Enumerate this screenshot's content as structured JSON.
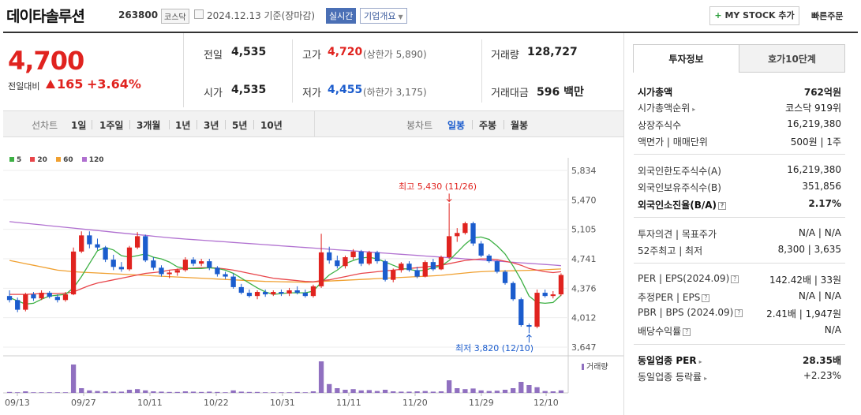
{
  "header": {
    "name": "데이타솔루션",
    "code": "263800",
    "market": "코스닥",
    "date": "2024.12.13 기준(장마감)",
    "live_label": "실시간",
    "corp_label": "기업개요",
    "mystock_label": "MY STOCK 추가",
    "quick_order_label": "빠른주문"
  },
  "price": {
    "current": "4,700",
    "change_label": "전일대비",
    "change": "165",
    "change_pct": "+3.64%"
  },
  "quote": {
    "prev_label": "전일",
    "prev": "4,535",
    "open_label": "시가",
    "open": "4,535",
    "high_label": "고가",
    "high": "4,720",
    "high_sub": "(상한가 5,890)",
    "low_label": "저가",
    "low": "4,455",
    "low_sub": "(하한가 3,175)",
    "vol_label": "거래량",
    "vol": "128,727",
    "amt_label": "거래대금",
    "amt": "596",
    "amt_unit": "백만"
  },
  "chart_tabs": {
    "line_label": "선차트",
    "periods": [
      "1일",
      "1주일",
      "3개월",
      "1년",
      "3년",
      "5년",
      "10년"
    ],
    "candle_label": "봉차트",
    "candles": [
      "일봉",
      "주봉",
      "월봉"
    ]
  },
  "side": {
    "tab_info": "투자정보",
    "tab_hoga": "호가10단계",
    "rows": [
      {
        "l": "시가총액",
        "r": "762억원"
      },
      {
        "l": "시가총액순위",
        "r": "코스닥 919위"
      },
      {
        "l": "상장주식수",
        "r": "16,219,380"
      },
      {
        "l": "액면가 | 매매단위",
        "r": "500원 | 1주"
      },
      {
        "l": "외국인한도주식수(A)",
        "r": "16,219,380"
      },
      {
        "l": "외국인보유주식수(B)",
        "r": "351,856"
      },
      {
        "l": "외국인소진율(B/A)",
        "r": "2.17%"
      },
      {
        "l": "투자의견 | 목표주가",
        "r": "N/A | N/A"
      },
      {
        "l": "52주최고 | 최저",
        "r": "8,300 | 3,635"
      },
      {
        "l": "PER | EPS(2024.09)",
        "r": "142.42배 | 33원"
      },
      {
        "l": "추정PER | EPS",
        "r": "N/A | N/A"
      },
      {
        "l": "PBR | BPS (2024.09)",
        "r": "2.41배 | 1,947원"
      },
      {
        "l": "배당수익률",
        "r": "N/A"
      },
      {
        "l": "동일업종 PER",
        "r": "28.35배"
      },
      {
        "l": "동일업종 등락률",
        "r": "+2.23%"
      }
    ]
  },
  "chart_data": {
    "type": "candlestick",
    "legend": [
      {
        "name": "5",
        "color": "#3cb043"
      },
      {
        "name": "20",
        "color": "#e8454a"
      },
      {
        "name": "60",
        "color": "#f0a030"
      },
      {
        "name": "120",
        "color": "#b070d0"
      }
    ],
    "y_ticks": [
      5834,
      5470,
      5105,
      4741,
      4376,
      4012,
      3647
    ],
    "ylim": [
      3647,
      5834
    ],
    "x_ticks": [
      "09/13",
      "09/27",
      "10/11",
      "10/22",
      "10/31",
      "11/11",
      "11/20",
      "11/29",
      "12/10"
    ],
    "max_annot": "최고 5,430 (11/26)",
    "min_annot": "최저 3,820 (12/10)",
    "volume_label": "거래량",
    "candles": [
      [
        4280,
        4350,
        4200,
        4230
      ],
      [
        4230,
        4260,
        4080,
        4110
      ],
      [
        4110,
        4320,
        4090,
        4300
      ],
      [
        4300,
        4330,
        4220,
        4250
      ],
      [
        4250,
        4350,
        4230,
        4320
      ],
      [
        4320,
        4340,
        4250,
        4270
      ],
      [
        4270,
        4300,
        4200,
        4230
      ],
      [
        4230,
        4330,
        4210,
        4300
      ],
      [
        4300,
        4880,
        4290,
        4830
      ],
      [
        4830,
        5080,
        4810,
        5030
      ],
      [
        5030,
        5080,
        4870,
        4920
      ],
      [
        4920,
        4990,
        4850,
        4880
      ],
      [
        4880,
        4900,
        4700,
        4730
      ],
      [
        4730,
        4790,
        4600,
        4640
      ],
      [
        4640,
        4700,
        4580,
        4610
      ],
      [
        4610,
        4900,
        4590,
        4880
      ],
      [
        4880,
        5070,
        4860,
        5020
      ],
      [
        5020,
        5040,
        4700,
        4720
      ],
      [
        4720,
        4760,
        4600,
        4630
      ],
      [
        4630,
        4660,
        4520,
        4550
      ],
      [
        4550,
        4600,
        4500,
        4570
      ],
      [
        4570,
        4620,
        4530,
        4600
      ],
      [
        4600,
        4760,
        4580,
        4730
      ],
      [
        4730,
        4760,
        4650,
        4680
      ],
      [
        4680,
        4740,
        4650,
        4710
      ],
      [
        4710,
        4740,
        4600,
        4630
      ],
      [
        4630,
        4650,
        4520,
        4550
      ],
      [
        4550,
        4580,
        4490,
        4520
      ],
      [
        4520,
        4560,
        4370,
        4390
      ],
      [
        4390,
        4430,
        4300,
        4320
      ],
      [
        4320,
        4360,
        4260,
        4280
      ],
      [
        4280,
        4350,
        4240,
        4330
      ],
      [
        4330,
        4360,
        4270,
        4300
      ],
      [
        4300,
        4350,
        4280,
        4330
      ],
      [
        4330,
        4360,
        4280,
        4310
      ],
      [
        4310,
        4380,
        4280,
        4350
      ],
      [
        4350,
        4400,
        4300,
        4320
      ],
      [
        4320,
        4360,
        4260,
        4280
      ],
      [
        4280,
        4420,
        4260,
        4400
      ],
      [
        4400,
        5050,
        4380,
        4820
      ],
      [
        4820,
        4890,
        4680,
        4720
      ],
      [
        4720,
        4780,
        4620,
        4650
      ],
      [
        4650,
        4780,
        4620,
        4760
      ],
      [
        4760,
        4860,
        4730,
        4830
      ],
      [
        4830,
        4850,
        4650,
        4680
      ],
      [
        4680,
        4840,
        4660,
        4820
      ],
      [
        4820,
        4840,
        4680,
        4710
      ],
      [
        4710,
        4730,
        4460,
        4480
      ],
      [
        4480,
        4620,
        4450,
        4600
      ],
      [
        4600,
        4700,
        4570,
        4680
      ],
      [
        4680,
        4710,
        4580,
        4600
      ],
      [
        4600,
        4640,
        4500,
        4520
      ],
      [
        4520,
        4720,
        4510,
        4700
      ],
      [
        4700,
        4740,
        4590,
        4610
      ],
      [
        4610,
        4780,
        4600,
        4760
      ],
      [
        4760,
        5430,
        4740,
        5020
      ],
      [
        5020,
        5120,
        4950,
        5060
      ],
      [
        5060,
        5200,
        5040,
        5180
      ],
      [
        5180,
        5200,
        4900,
        4930
      ],
      [
        4930,
        4960,
        4760,
        4780
      ],
      [
        4780,
        4800,
        4690,
        4710
      ],
      [
        4710,
        4720,
        4560,
        4580
      ],
      [
        4580,
        4600,
        4420,
        4440
      ],
      [
        4440,
        4460,
        4220,
        4240
      ],
      [
        4240,
        4260,
        3900,
        3920
      ],
      [
        3920,
        3940,
        3820,
        3900
      ],
      [
        3900,
        4360,
        3880,
        4320
      ],
      [
        4320,
        4360,
        4260,
        4280
      ],
      [
        4280,
        4340,
        4250,
        4300
      ],
      [
        4300,
        4560,
        4280,
        4540
      ]
    ],
    "volume": [
      0.03,
      0.02,
      0.05,
      0.02,
      0.02,
      0.02,
      0.02,
      0.02,
      0.9,
      0.15,
      0.08,
      0.06,
      0.05,
      0.04,
      0.04,
      0.1,
      0.12,
      0.08,
      0.05,
      0.04,
      0.03,
      0.03,
      0.05,
      0.04,
      0.03,
      0.04,
      0.03,
      0.02,
      0.08,
      0.04,
      0.03,
      0.03,
      0.02,
      0.02,
      0.02,
      0.02,
      0.03,
      0.02,
      0.05,
      1.0,
      0.28,
      0.15,
      0.1,
      0.12,
      0.08,
      0.09,
      0.06,
      0.1,
      0.05,
      0.04,
      0.04,
      0.05,
      0.06,
      0.04,
      0.05,
      0.4,
      0.15,
      0.12,
      0.14,
      0.08,
      0.06,
      0.07,
      0.1,
      0.15,
      0.35,
      0.25,
      0.18,
      0.06,
      0.05,
      0.08
    ],
    "ma5": [
      4260,
      4220,
      4180,
      4190,
      4240,
      4280,
      4290,
      4300,
      4380,
      4520,
      4680,
      4840,
      4880,
      4850,
      4780,
      4760,
      4780,
      4800,
      4760,
      4740,
      4700,
      4640,
      4620,
      4620,
      4620,
      4630,
      4620,
      4600,
      4560,
      4500,
      4440,
      4380,
      4330,
      4300,
      4310,
      4320,
      4320,
      4320,
      4340,
      4450,
      4540,
      4600,
      4680,
      4720,
      4750,
      4760,
      4740,
      4700,
      4660,
      4620,
      4610,
      4590,
      4600,
      4630,
      4650,
      4720,
      4820,
      4920,
      5000,
      5010,
      4980,
      4900,
      4800,
      4650,
      4480,
      4280,
      4200,
      4190,
      4200,
      4290
    ],
    "ma20": [
      4300,
      4300,
      4300,
      4305,
      4310,
      4310,
      4310,
      4315,
      4330,
      4370,
      4410,
      4440,
      4460,
      4480,
      4500,
      4520,
      4540,
      4560,
      4570,
      4580,
      4600,
      4610,
      4620,
      4625,
      4630,
      4630,
      4625,
      4615,
      4600,
      4580,
      4560,
      4540,
      4520,
      4500,
      4490,
      4480,
      4470,
      4460,
      4455,
      4470,
      4480,
      4500,
      4520,
      4540,
      4560,
      4570,
      4580,
      4590,
      4600,
      4610,
      4620,
      4630,
      4640,
      4650,
      4660,
      4680,
      4700,
      4720,
      4730,
      4740,
      4740,
      4730,
      4710,
      4690,
      4660,
      4620,
      4600,
      4580,
      4570,
      4580
    ],
    "ma60": [
      4720,
      4700,
      4680,
      4660,
      4640,
      4620,
      4600,
      4590,
      4580,
      4575,
      4570,
      4565,
      4560,
      4555,
      4550,
      4545,
      4540,
      4535,
      4530,
      4525,
      4520,
      4515,
      4510,
      4505,
      4500,
      4495,
      4490,
      4485,
      4480,
      4475,
      4470,
      4465,
      4460,
      4458,
      4456,
      4454,
      4452,
      4450,
      4452,
      4460,
      4465,
      4470,
      4475,
      4480,
      4485,
      4490,
      4495,
      4500,
      4505,
      4510,
      4515,
      4520,
      4525,
      4530,
      4535,
      4545,
      4555,
      4565,
      4575,
      4580,
      4585,
      4588,
      4590,
      4592,
      4595,
      4598,
      4600,
      4605,
      4610,
      4615
    ],
    "ma120": [
      5200,
      5190,
      5180,
      5170,
      5160,
      5150,
      5140,
      5130,
      5120,
      5110,
      5100,
      5090,
      5080,
      5070,
      5060,
      5050,
      5040,
      5030,
      5020,
      5010,
      5000,
      4992,
      4985,
      4978,
      4971,
      4964,
      4957,
      4950,
      4943,
      4936,
      4929,
      4922,
      4915,
      4908,
      4901,
      4894,
      4887,
      4880,
      4873,
      4866,
      4859,
      4852,
      4845,
      4838,
      4831,
      4824,
      4817,
      4810,
      4803,
      4796,
      4789,
      4782,
      4775,
      4768,
      4761,
      4754,
      4747,
      4740,
      4733,
      4726,
      4719,
      4712,
      4705,
      4698,
      4691,
      4684,
      4677,
      4670,
      4663,
      4656
    ]
  }
}
